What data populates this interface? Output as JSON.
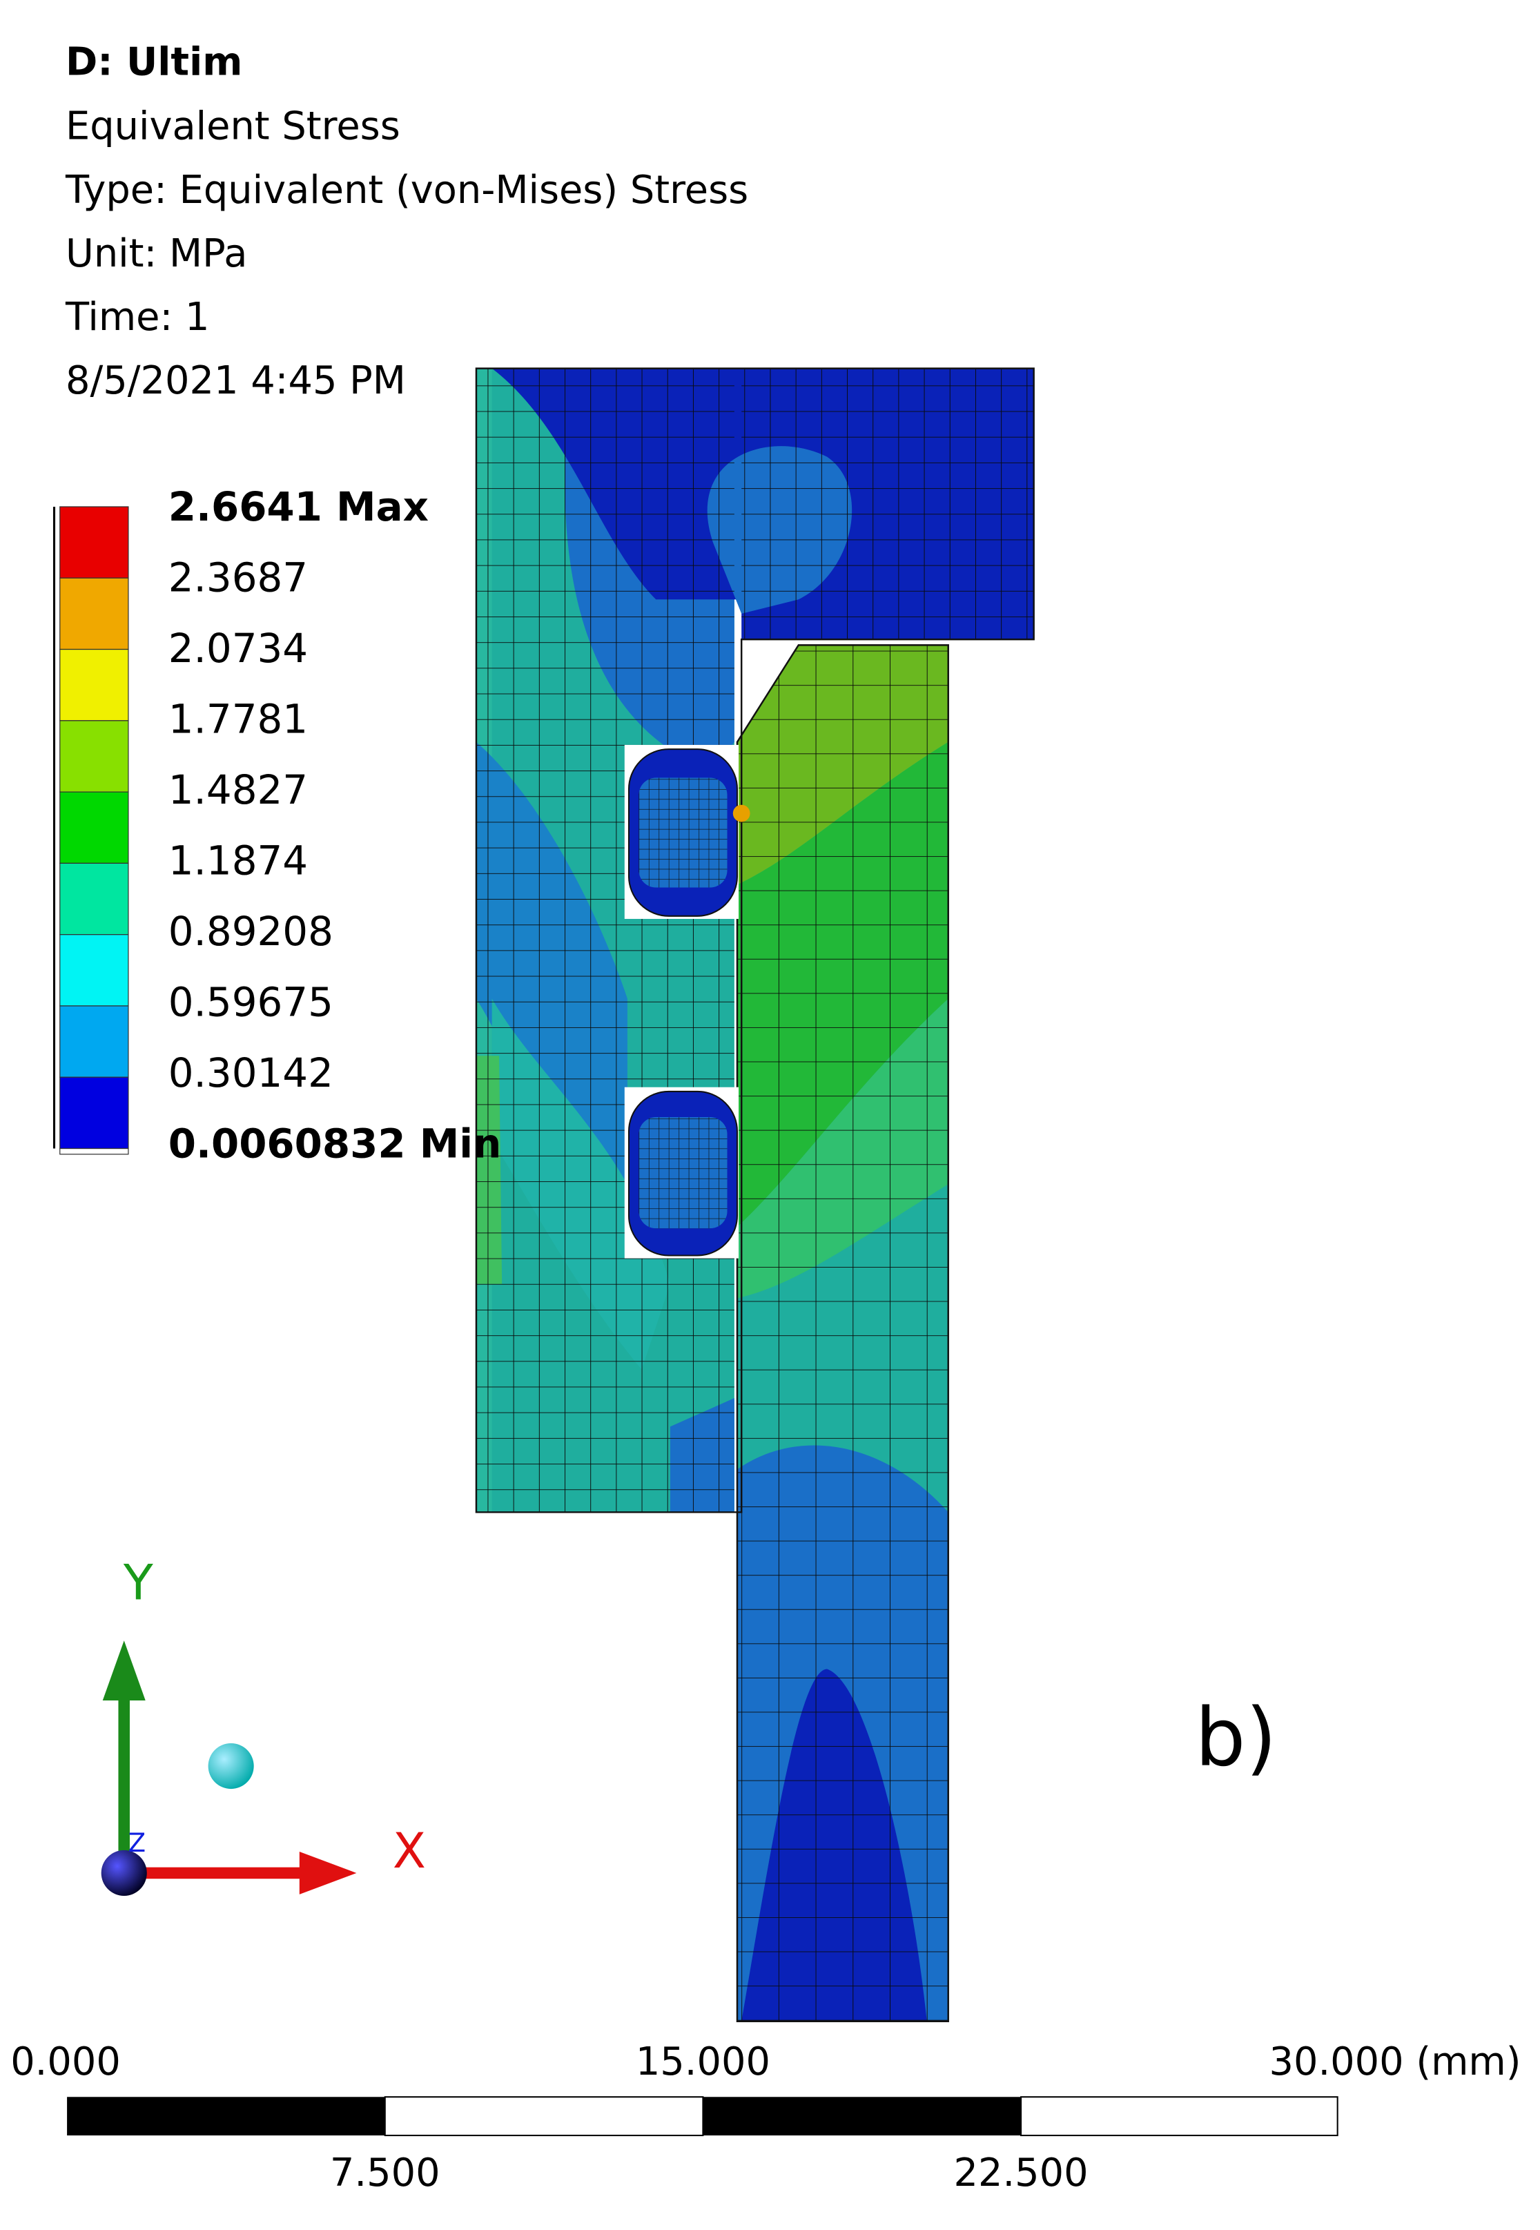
{
  "header": {
    "title": "D: Ultim",
    "lines": [
      "Equivalent Stress",
      "Type: Equivalent (von-Mises) Stress",
      "Unit: MPa",
      "Time: 1",
      "8/5/2021 4:45 PM"
    ]
  },
  "legend": {
    "labels": [
      "2.6641 Max",
      "2.3687",
      "2.0734",
      "1.7781",
      "1.4827",
      "1.1874",
      "0.89208",
      "0.59675",
      "0.30142",
      "0.0060832 Min"
    ]
  },
  "triad": {
    "y_label": "Y",
    "x_label": "X",
    "z_label": "Z"
  },
  "scale_bar": {
    "top_labels": [
      "0.000",
      "15.000",
      "30.000 (mm)"
    ],
    "bottom_labels": [
      "7.500",
      "22.500"
    ]
  },
  "annotation": "b)"
}
